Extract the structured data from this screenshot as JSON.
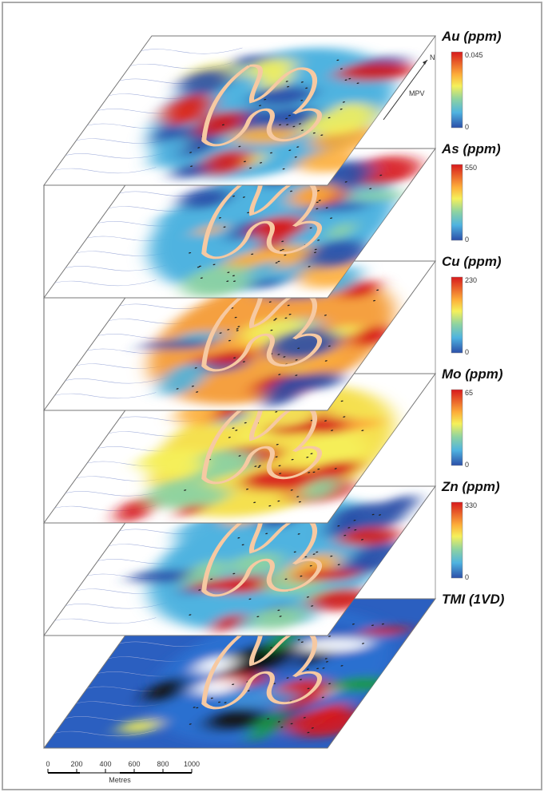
{
  "layers": [
    {
      "label": "Au (ppm)",
      "max": "0.045",
      "min": "0"
    },
    {
      "label": "As (ppm)",
      "max": "550",
      "min": "0"
    },
    {
      "label": "Cu (ppm)",
      "max": "230",
      "min": "0"
    },
    {
      "label": "Mo (ppm)",
      "max": "65",
      "min": "0"
    },
    {
      "label": "Zn (ppm)",
      "max": "330",
      "min": "0"
    },
    {
      "label": "TMI (1VD)"
    }
  ],
  "scale_bar": {
    "ticks": [
      "0",
      "200",
      "400",
      "600",
      "800",
      "1000"
    ],
    "unit": "Metres"
  },
  "north_arrow": {
    "label": "N",
    "sublabel": "MPV"
  }
}
